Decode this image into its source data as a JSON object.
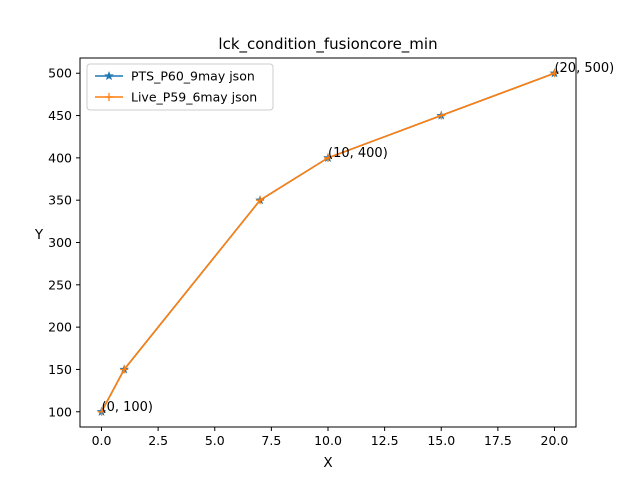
{
  "chart_data": {
    "type": "line",
    "title": "lck_condition_fusioncore_min",
    "xlabel": "X",
    "ylabel": "Y",
    "xlim": [
      -0.95,
      20.95
    ],
    "ylim": [
      82,
      518
    ],
    "xticks": [
      0.0,
      2.5,
      5.0,
      7.5,
      10.0,
      12.5,
      15.0,
      17.5,
      20.0
    ],
    "xtick_labels": [
      "0.0",
      "2.5",
      "5.0",
      "7.5",
      "10.0",
      "12.5",
      "15.0",
      "17.5",
      "20.0"
    ],
    "yticks": [
      100,
      150,
      200,
      250,
      300,
      350,
      400,
      450,
      500
    ],
    "ytick_labels": [
      "100",
      "150",
      "200",
      "250",
      "300",
      "350",
      "400",
      "450",
      "500"
    ],
    "grid": false,
    "legend_position": "top-left",
    "series": [
      {
        "name": "PTS_P60_9may json",
        "color": "#1f77b4",
        "marker": "star",
        "x": [
          0,
          1,
          7,
          10,
          15,
          20
        ],
        "y": [
          100,
          150,
          350,
          400,
          450,
          500
        ]
      },
      {
        "name": "Live_P59_6may json",
        "color": "#ff7f0e",
        "marker": "plus",
        "x": [
          0,
          1,
          7,
          10,
          15,
          20
        ],
        "y": [
          100,
          150,
          350,
          400,
          450,
          500
        ]
      }
    ],
    "annotations": [
      {
        "text": "(0, 100)",
        "x": 0,
        "y": 100
      },
      {
        "text": "(10, 400)",
        "x": 10,
        "y": 400
      },
      {
        "text": "(20, 500)",
        "x": 20,
        "y": 500
      }
    ]
  }
}
